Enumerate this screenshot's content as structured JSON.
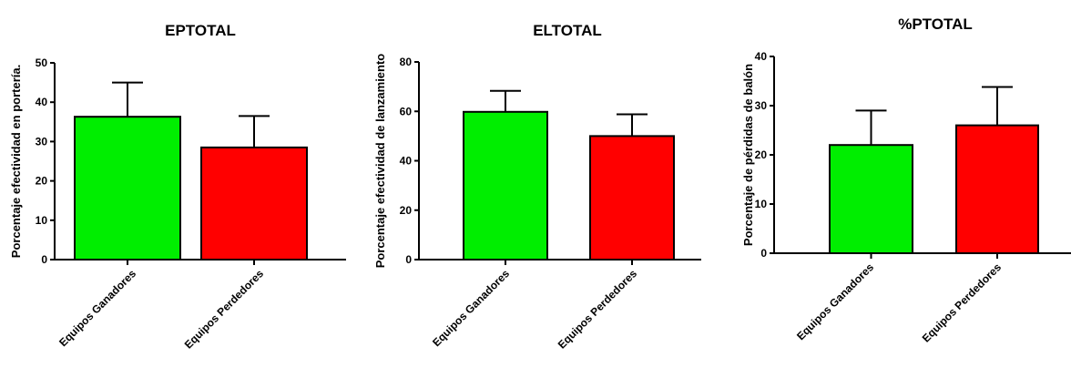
{
  "chart_data": [
    {
      "type": "bar",
      "title": "EPTOTAL",
      "ylabel": "Porcentaje efectividad en portería.",
      "xlabel": "",
      "categories": [
        "Equipos Ganadores",
        "Equipos Perdedores"
      ],
      "values": [
        36.3,
        28.5
      ],
      "error": [
        8.7,
        8.0
      ],
      "ylim": [
        0,
        50
      ],
      "yticks": [
        0,
        10,
        20,
        30,
        40,
        50
      ],
      "colors": [
        "#00ee00",
        "#ff0000"
      ],
      "grid": false
    },
    {
      "type": "bar",
      "title": "ELTOTAL",
      "ylabel": "Porcentaje efectividad de lanzamiento",
      "xlabel": "",
      "categories": [
        "Equipos Ganadores",
        "Equipos Perdedores"
      ],
      "values": [
        59.8,
        50.0
      ],
      "error": [
        8.5,
        8.8
      ],
      "ylim": [
        0,
        80
      ],
      "yticks": [
        0,
        20,
        40,
        60,
        80
      ],
      "colors": [
        "#00ee00",
        "#ff0000"
      ],
      "grid": false
    },
    {
      "type": "bar",
      "title": "%PTOTAL",
      "ylabel": "Porcentaje de pérdidas de balón",
      "xlabel": "",
      "categories": [
        "Equipos Ganadores",
        "Equipos Perdedores"
      ],
      "values": [
        22.0,
        26.0
      ],
      "error": [
        7.0,
        7.8
      ],
      "ylim": [
        0,
        40
      ],
      "yticks": [
        0,
        10,
        20,
        30,
        40
      ],
      "colors": [
        "#00ee00",
        "#ff0000"
      ],
      "grid": false
    }
  ]
}
